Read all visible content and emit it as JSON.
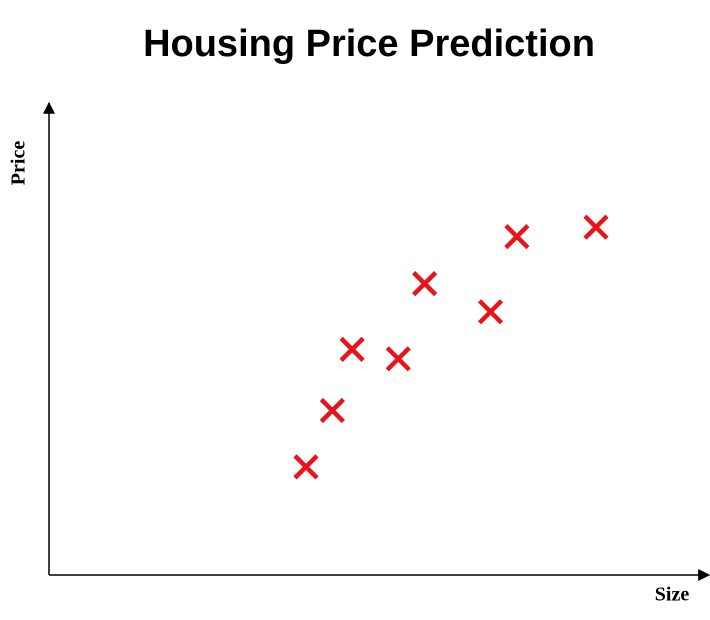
{
  "chart_data": {
    "type": "scatter",
    "title": "Housing Price Prediction",
    "x_label": "Size",
    "y_label": "Price",
    "x": [
      39,
      43,
      46,
      53,
      57,
      67,
      71,
      83
    ],
    "values": [
      23,
      35,
      48,
      46,
      62,
      56,
      72,
      74
    ],
    "marker": "x",
    "color": "#e8141b",
    "xlim": [
      0,
      100
    ],
    "ylim": [
      0,
      100
    ]
  }
}
